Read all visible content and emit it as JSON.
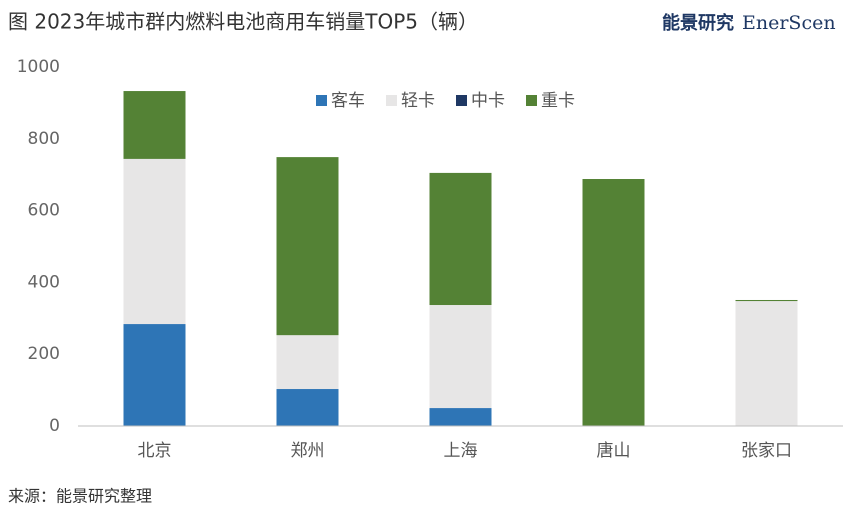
{
  "chart_data": {
    "type": "stacked_bar",
    "title": "图 2023年城市群内燃料电池商用车销量TOP5（辆）",
    "logo_cn": "能景研究",
    "logo_en": "EnerScen",
    "source": "来源：能景研究整理",
    "categories": [
      "北京",
      "郑州",
      "上海",
      "唐山",
      "张家口"
    ],
    "series": [
      {
        "name": "客车",
        "color": "#2e75b6",
        "values": [
          284,
          103,
          50,
          0,
          0
        ]
      },
      {
        "name": "轻卡",
        "color": "#e7e6e6",
        "values": [
          460,
          150,
          287,
          0,
          348
        ]
      },
      {
        "name": "中卡",
        "color": "#1f3864",
        "values": [
          0,
          0,
          0,
          0,
          0
        ]
      },
      {
        "name": "重卡",
        "color": "#548235",
        "values": [
          189,
          496,
          368,
          688,
          3
        ]
      }
    ],
    "ylim": [
      0,
      1000
    ],
    "yticks": [
      0,
      200,
      400,
      600,
      800,
      1000
    ],
    "grid": false,
    "legend": "top"
  }
}
